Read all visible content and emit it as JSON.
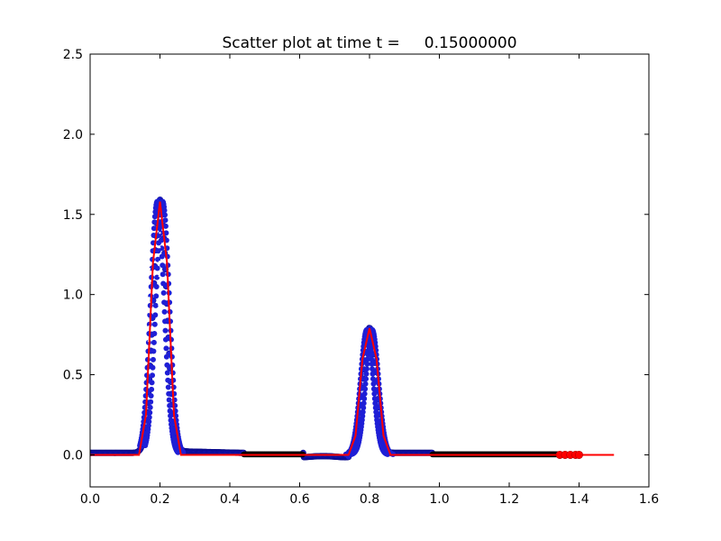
{
  "chart_data": {
    "type": "scatter",
    "title": "Scatter plot at time t =     0.15000000",
    "xlabel": "",
    "ylabel": "",
    "xlim": [
      0.0,
      1.6
    ],
    "ylim": [
      -0.2,
      2.5
    ],
    "xticks": [
      "0.0",
      "0.2",
      "0.4",
      "0.6",
      "0.8",
      "1.0",
      "1.2",
      "1.4",
      "1.6"
    ],
    "yticks": [
      "0.0",
      "0.5",
      "1.0",
      "1.5",
      "2.0",
      "2.5"
    ],
    "grid": false,
    "legend": "none",
    "colors": {
      "blue_scatter": "#1f1fd6",
      "black_scatter": "#000000",
      "red_line": "#ff0000",
      "red_points": "#ff0000"
    },
    "series": [
      {
        "kind": "line",
        "color": "#ff0000",
        "x": [
          0.0,
          0.14,
          0.16,
          0.18,
          0.2,
          0.22,
          0.24,
          0.26,
          0.28,
          0.3,
          0.74,
          0.76,
          0.78,
          0.8,
          0.82,
          0.84,
          0.86,
          0.88,
          1.5
        ],
        "y": [
          0.0,
          0.0,
          0.25,
          1.2,
          1.58,
          1.2,
          0.25,
          0.0,
          0.0,
          0.0,
          0.0,
          0.12,
          0.6,
          0.79,
          0.6,
          0.12,
          0.0,
          0.0,
          0.0
        ]
      },
      {
        "kind": "points",
        "color": "#ff0000",
        "x": [
          1.345,
          1.36,
          1.375,
          1.39,
          1.4
        ],
        "y": [
          0.0,
          0.0,
          0.0,
          0.0,
          0.0
        ]
      }
    ]
  }
}
